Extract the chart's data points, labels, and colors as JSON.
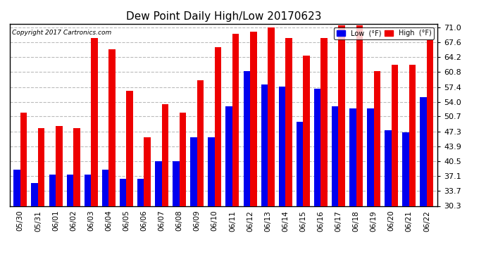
{
  "title": "Dew Point Daily High/Low 20170623",
  "copyright": "Copyright 2017 Cartronics.com",
  "dates": [
    "05/30",
    "05/31",
    "06/01",
    "06/02",
    "06/03",
    "06/04",
    "06/05",
    "06/06",
    "06/07",
    "06/08",
    "06/09",
    "06/10",
    "06/11",
    "06/12",
    "06/13",
    "06/14",
    "06/15",
    "06/16",
    "06/17",
    "06/18",
    "06/19",
    "06/20",
    "06/21",
    "06/22"
  ],
  "low": [
    38.5,
    35.5,
    37.5,
    37.5,
    37.5,
    38.5,
    36.5,
    36.5,
    40.5,
    40.5,
    46.0,
    46.0,
    53.0,
    61.0,
    58.0,
    57.5,
    49.5,
    57.0,
    53.0,
    52.5,
    52.5,
    47.5,
    47.0,
    55.0
  ],
  "high": [
    51.5,
    48.0,
    48.5,
    48.0,
    68.5,
    66.0,
    56.5,
    46.0,
    53.5,
    51.5,
    59.0,
    66.5,
    69.5,
    70.0,
    71.0,
    68.5,
    64.5,
    68.5,
    71.5,
    71.5,
    61.0,
    62.5,
    62.5,
    68.0
  ],
  "low_color": "#0000ee",
  "high_color": "#ee0000",
  "bg_color": "#ffffff",
  "grid_color": "#bbbbbb",
  "yticks": [
    30.3,
    33.7,
    37.1,
    40.5,
    43.9,
    47.3,
    50.7,
    54.0,
    57.4,
    60.8,
    64.2,
    67.6,
    71.0
  ],
  "ymin": 30.3,
  "ymax": 71.8,
  "bar_width": 0.38
}
